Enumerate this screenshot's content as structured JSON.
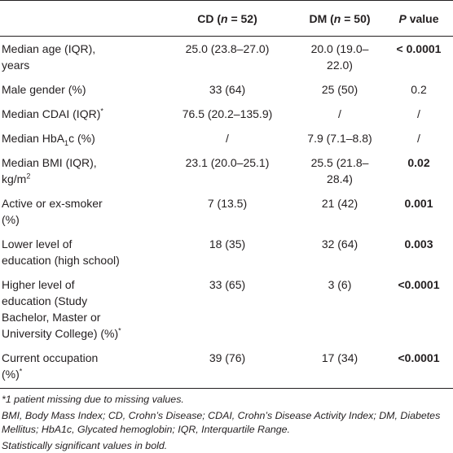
{
  "table": {
    "headers": [
      [
        "CD (",
        {
          "text": "n",
          "style": "italic"
        },
        " = 52)"
      ],
      [
        "DM (",
        {
          "text": "n",
          "style": "italic"
        },
        " = 50)"
      ],
      [
        {
          "text": "P",
          "style": "italic"
        },
        " value"
      ]
    ],
    "rows": [
      {
        "label": [
          [
            "Median age (IQR),"
          ],
          [
            "years"
          ]
        ],
        "cd": "25.0 (23.8–27.0)",
        "dm": "20.0 (19.0–22.0)",
        "p": "< 0.0001",
        "bold": true
      },
      {
        "label": [
          [
            "Male gender (%)"
          ]
        ],
        "cd": "33 (64)",
        "dm": "25 (50)",
        "p": "0.2",
        "bold": false
      },
      {
        "label": [
          [
            "Median CDAI (IQR)",
            {
              "text": "*",
              "style": "sup"
            }
          ]
        ],
        "cd": "76.5 (20.2–135.9)",
        "dm": "/",
        "p": "/",
        "bold": false
      },
      {
        "label": [
          [
            "Median HbA",
            {
              "text": "1",
              "style": "sub"
            },
            "c (%)"
          ]
        ],
        "cd": "/",
        "dm": "7.9 (7.1–8.8)",
        "p": "/",
        "bold": false
      },
      {
        "label": [
          [
            "Median BMI (IQR),"
          ],
          [
            "kg/m",
            {
              "text": "2",
              "style": "sup"
            }
          ]
        ],
        "cd": "23.1 (20.0–25.1)",
        "dm": "25.5 (21.8–28.4)",
        "p": "0.02",
        "bold": true
      },
      {
        "label": [
          [
            "Active or ex-smoker"
          ],
          [
            "(%)"
          ]
        ],
        "cd": "7 (13.5)",
        "dm": "21 (42)",
        "p": "0.001",
        "bold": true
      },
      {
        "label": [
          [
            "Lower level of"
          ],
          [
            "education (high school)"
          ]
        ],
        "cd": "18 (35)",
        "dm": "32 (64)",
        "p": "0.003",
        "bold": true
      },
      {
        "label": [
          [
            "Higher level of"
          ],
          [
            "education (Study"
          ],
          [
            "Bachelor, Master or"
          ],
          [
            "University College) (%)",
            {
              "text": "*",
              "style": "sup"
            }
          ]
        ],
        "cd": "33 (65)",
        "dm": "3 (6)",
        "p": "<0.0001",
        "bold": true
      },
      {
        "label": [
          [
            "Current occupation"
          ],
          [
            "(%)",
            {
              "text": "*",
              "style": "sup"
            }
          ]
        ],
        "cd": "39 (76)",
        "dm": "17 (34)",
        "p": "<0.0001",
        "bold": true
      }
    ],
    "notes": [
      "*1 patient missing due to missing values.",
      "BMI, Body Mass Index; CD, Crohn’s Disease; CDAI, Crohn’s Disease Activity Index; DM, Diabetes Mellitus; HbA1c, Glycated hemoglobin; IQR, Interquartile Range.",
      "Statistically significant values in bold."
    ]
  }
}
